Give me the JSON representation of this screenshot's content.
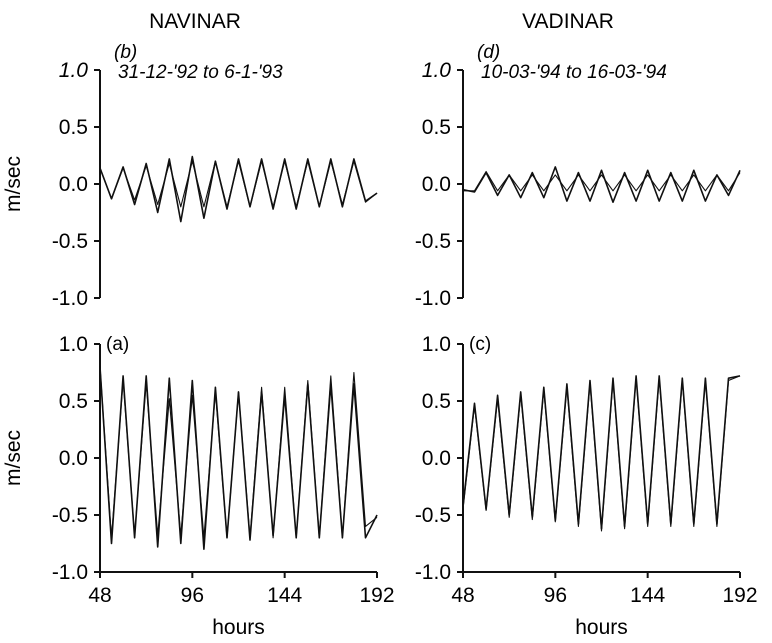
{
  "titles": {
    "left": "NAVINAR",
    "right": "VADINAR"
  },
  "colors": {
    "line": "#111111",
    "axis": "#111111"
  },
  "chart_data": [
    {
      "id": "b",
      "type": "line",
      "panel_label": "(b)",
      "date_range": "31-12-'92 to 6-1-'93",
      "ylabel": "m/sec",
      "xlabel": "",
      "ylim": [
        -1.0,
        1.0
      ],
      "xlim": [
        48,
        192
      ],
      "yticks": [
        "1.0",
        "0.5",
        "0.0",
        "-0.5",
        "-1.0"
      ],
      "xticks": [],
      "series": [
        {
          "points": [
            [
              48,
              0.14
            ],
            [
              54,
              -0.13
            ],
            [
              60,
              0.15
            ],
            [
              66,
              -0.18
            ],
            [
              72,
              0.18
            ],
            [
              78,
              -0.25
            ],
            [
              84,
              0.22
            ],
            [
              90,
              -0.33
            ],
            [
              96,
              0.24
            ],
            [
              102,
              -0.3
            ],
            [
              108,
              0.2
            ],
            [
              114,
              -0.22
            ],
            [
              120,
              0.22
            ],
            [
              126,
              -0.2
            ],
            [
              132,
              0.22
            ],
            [
              138,
              -0.22
            ],
            [
              144,
              0.22
            ],
            [
              150,
              -0.22
            ],
            [
              156,
              0.22
            ],
            [
              162,
              -0.2
            ],
            [
              168,
              0.22
            ],
            [
              174,
              -0.2
            ],
            [
              180,
              0.22
            ],
            [
              186,
              -0.15
            ],
            [
              192,
              -0.08
            ]
          ]
        },
        {
          "points": [
            [
              48,
              0.14
            ],
            [
              54,
              -0.13
            ],
            [
              60,
              0.14
            ],
            [
              66,
              -0.14
            ],
            [
              72,
              0.16
            ],
            [
              78,
              -0.18
            ],
            [
              84,
              0.18
            ],
            [
              90,
              -0.2
            ],
            [
              96,
              0.2
            ],
            [
              102,
              -0.2
            ],
            [
              108,
              0.2
            ],
            [
              114,
              -0.2
            ],
            [
              120,
              0.2
            ],
            [
              126,
              -0.2
            ],
            [
              132,
              0.2
            ],
            [
              138,
              -0.2
            ],
            [
              144,
              0.2
            ],
            [
              150,
              -0.2
            ],
            [
              156,
              0.2
            ],
            [
              162,
              -0.2
            ],
            [
              168,
              0.2
            ],
            [
              174,
              -0.18
            ],
            [
              180,
              0.2
            ],
            [
              186,
              -0.16
            ],
            [
              192,
              -0.08
            ]
          ]
        }
      ]
    },
    {
      "id": "d",
      "type": "line",
      "panel_label": "(d)",
      "date_range": "10-03-'94 to 16-03-'94",
      "ylabel": "",
      "xlabel": "",
      "ylim": [
        -1.0,
        1.0
      ],
      "xlim": [
        48,
        192
      ],
      "yticks": [
        "1.0",
        "0.5",
        "0.0",
        "-0.5",
        "-1.0"
      ],
      "xticks": [],
      "series": [
        {
          "points": [
            [
              48,
              -0.05
            ],
            [
              54,
              -0.07
            ],
            [
              60,
              0.1
            ],
            [
              66,
              -0.1
            ],
            [
              72,
              0.08
            ],
            [
              78,
              -0.12
            ],
            [
              84,
              0.1
            ],
            [
              90,
              -0.12
            ],
            [
              96,
              0.15
            ],
            [
              102,
              -0.15
            ],
            [
              108,
              0.1
            ],
            [
              114,
              -0.15
            ],
            [
              120,
              0.12
            ],
            [
              126,
              -0.16
            ],
            [
              132,
              0.1
            ],
            [
              138,
              -0.15
            ],
            [
              144,
              0.12
            ],
            [
              150,
              -0.15
            ],
            [
              156,
              0.1
            ],
            [
              162,
              -0.15
            ],
            [
              168,
              0.12
            ],
            [
              174,
              -0.15
            ],
            [
              180,
              0.08
            ],
            [
              186,
              -0.1
            ],
            [
              192,
              0.12
            ]
          ]
        },
        {
          "points": [
            [
              48,
              -0.06
            ],
            [
              54,
              -0.06
            ],
            [
              60,
              0.11
            ],
            [
              66,
              -0.06
            ],
            [
              72,
              0.08
            ],
            [
              78,
              -0.06
            ],
            [
              84,
              0.08
            ],
            [
              90,
              -0.06
            ],
            [
              96,
              0.08
            ],
            [
              102,
              -0.06
            ],
            [
              108,
              0.08
            ],
            [
              114,
              -0.06
            ],
            [
              120,
              0.08
            ],
            [
              126,
              -0.06
            ],
            [
              132,
              0.08
            ],
            [
              138,
              -0.06
            ],
            [
              144,
              0.08
            ],
            [
              150,
              -0.06
            ],
            [
              156,
              0.08
            ],
            [
              162,
              -0.06
            ],
            [
              168,
              0.08
            ],
            [
              174,
              -0.06
            ],
            [
              180,
              0.08
            ],
            [
              186,
              -0.06
            ],
            [
              192,
              0.1
            ]
          ]
        }
      ]
    },
    {
      "id": "a",
      "type": "line",
      "panel_label": "(a)",
      "date_range": "",
      "ylabel": "m/sec",
      "xlabel": "hours",
      "ylim": [
        -1.0,
        1.0
      ],
      "xlim": [
        48,
        192
      ],
      "yticks": [
        "1.0",
        "0.5",
        "0.0",
        "-0.5",
        "-1.0"
      ],
      "xticks": [
        "48",
        "96",
        "144",
        "192"
      ],
      "series": [
        {
          "points": [
            [
              48,
              0.8
            ],
            [
              54,
              -0.75
            ],
            [
              60,
              0.72
            ],
            [
              66,
              -0.7
            ],
            [
              72,
              0.72
            ],
            [
              78,
              -0.78
            ],
            [
              84,
              0.7
            ],
            [
              90,
              -0.75
            ],
            [
              96,
              0.68
            ],
            [
              102,
              -0.8
            ],
            [
              108,
              0.62
            ],
            [
              114,
              -0.7
            ],
            [
              120,
              0.58
            ],
            [
              126,
              -0.72
            ],
            [
              132,
              0.58
            ],
            [
              138,
              -0.68
            ],
            [
              144,
              0.55
            ],
            [
              150,
              -0.7
            ],
            [
              156,
              0.65
            ],
            [
              162,
              -0.7
            ],
            [
              168,
              0.65
            ],
            [
              174,
              -0.7
            ],
            [
              180,
              0.65
            ],
            [
              186,
              -0.7
            ],
            [
              192,
              -0.5
            ]
          ]
        },
        {
          "points": [
            [
              48,
              0.8
            ],
            [
              54,
              -0.7
            ],
            [
              60,
              0.68
            ],
            [
              66,
              -0.68
            ],
            [
              72,
              0.66
            ],
            [
              78,
              -0.68
            ],
            [
              84,
              0.52
            ],
            [
              90,
              -0.68
            ],
            [
              96,
              0.55
            ],
            [
              102,
              -0.7
            ],
            [
              108,
              0.58
            ],
            [
              114,
              -0.7
            ],
            [
              120,
              0.58
            ],
            [
              126,
              -0.7
            ],
            [
              132,
              0.62
            ],
            [
              138,
              -0.7
            ],
            [
              144,
              0.62
            ],
            [
              150,
              -0.7
            ],
            [
              156,
              0.68
            ],
            [
              162,
              -0.7
            ],
            [
              168,
              0.72
            ],
            [
              174,
              -0.7
            ],
            [
              180,
              0.75
            ],
            [
              186,
              -0.6
            ],
            [
              192,
              -0.52
            ]
          ]
        }
      ]
    },
    {
      "id": "c",
      "type": "line",
      "panel_label": "(c)",
      "date_range": "",
      "ylabel": "",
      "xlabel": "hours",
      "ylim": [
        -1.0,
        1.0
      ],
      "xlim": [
        48,
        192
      ],
      "yticks": [
        "1.0",
        "0.5",
        "0.0",
        "-0.5",
        "-1.0"
      ],
      "xticks": [
        "48",
        "96",
        "144",
        "192"
      ],
      "series": [
        {
          "points": [
            [
              48,
              -0.42
            ],
            [
              54,
              0.48
            ],
            [
              60,
              -0.45
            ],
            [
              66,
              0.55
            ],
            [
              72,
              -0.5
            ],
            [
              78,
              0.58
            ],
            [
              84,
              -0.52
            ],
            [
              90,
              0.62
            ],
            [
              96,
              -0.55
            ],
            [
              102,
              0.65
            ],
            [
              108,
              -0.58
            ],
            [
              114,
              0.68
            ],
            [
              120,
              -0.62
            ],
            [
              126,
              0.7
            ],
            [
              132,
              -0.6
            ],
            [
              138,
              0.72
            ],
            [
              144,
              -0.58
            ],
            [
              150,
              0.72
            ],
            [
              156,
              -0.58
            ],
            [
              162,
              0.7
            ],
            [
              168,
              -0.58
            ],
            [
              174,
              0.7
            ],
            [
              180,
              -0.58
            ],
            [
              186,
              0.7
            ],
            [
              192,
              0.72
            ]
          ]
        },
        {
          "points": [
            [
              48,
              -0.45
            ],
            [
              54,
              0.46
            ],
            [
              60,
              -0.46
            ],
            [
              66,
              0.52
            ],
            [
              72,
              -0.52
            ],
            [
              78,
              0.56
            ],
            [
              84,
              -0.54
            ],
            [
              90,
              0.6
            ],
            [
              96,
              -0.56
            ],
            [
              102,
              0.62
            ],
            [
              108,
              -0.6
            ],
            [
              114,
              0.66
            ],
            [
              120,
              -0.64
            ],
            [
              126,
              0.68
            ],
            [
              132,
              -0.62
            ],
            [
              138,
              0.7
            ],
            [
              144,
              -0.6
            ],
            [
              150,
              0.7
            ],
            [
              156,
              -0.6
            ],
            [
              162,
              0.68
            ],
            [
              168,
              -0.6
            ],
            [
              174,
              0.68
            ],
            [
              180,
              -0.6
            ],
            [
              186,
              0.68
            ],
            [
              192,
              0.72
            ]
          ]
        }
      ]
    }
  ]
}
